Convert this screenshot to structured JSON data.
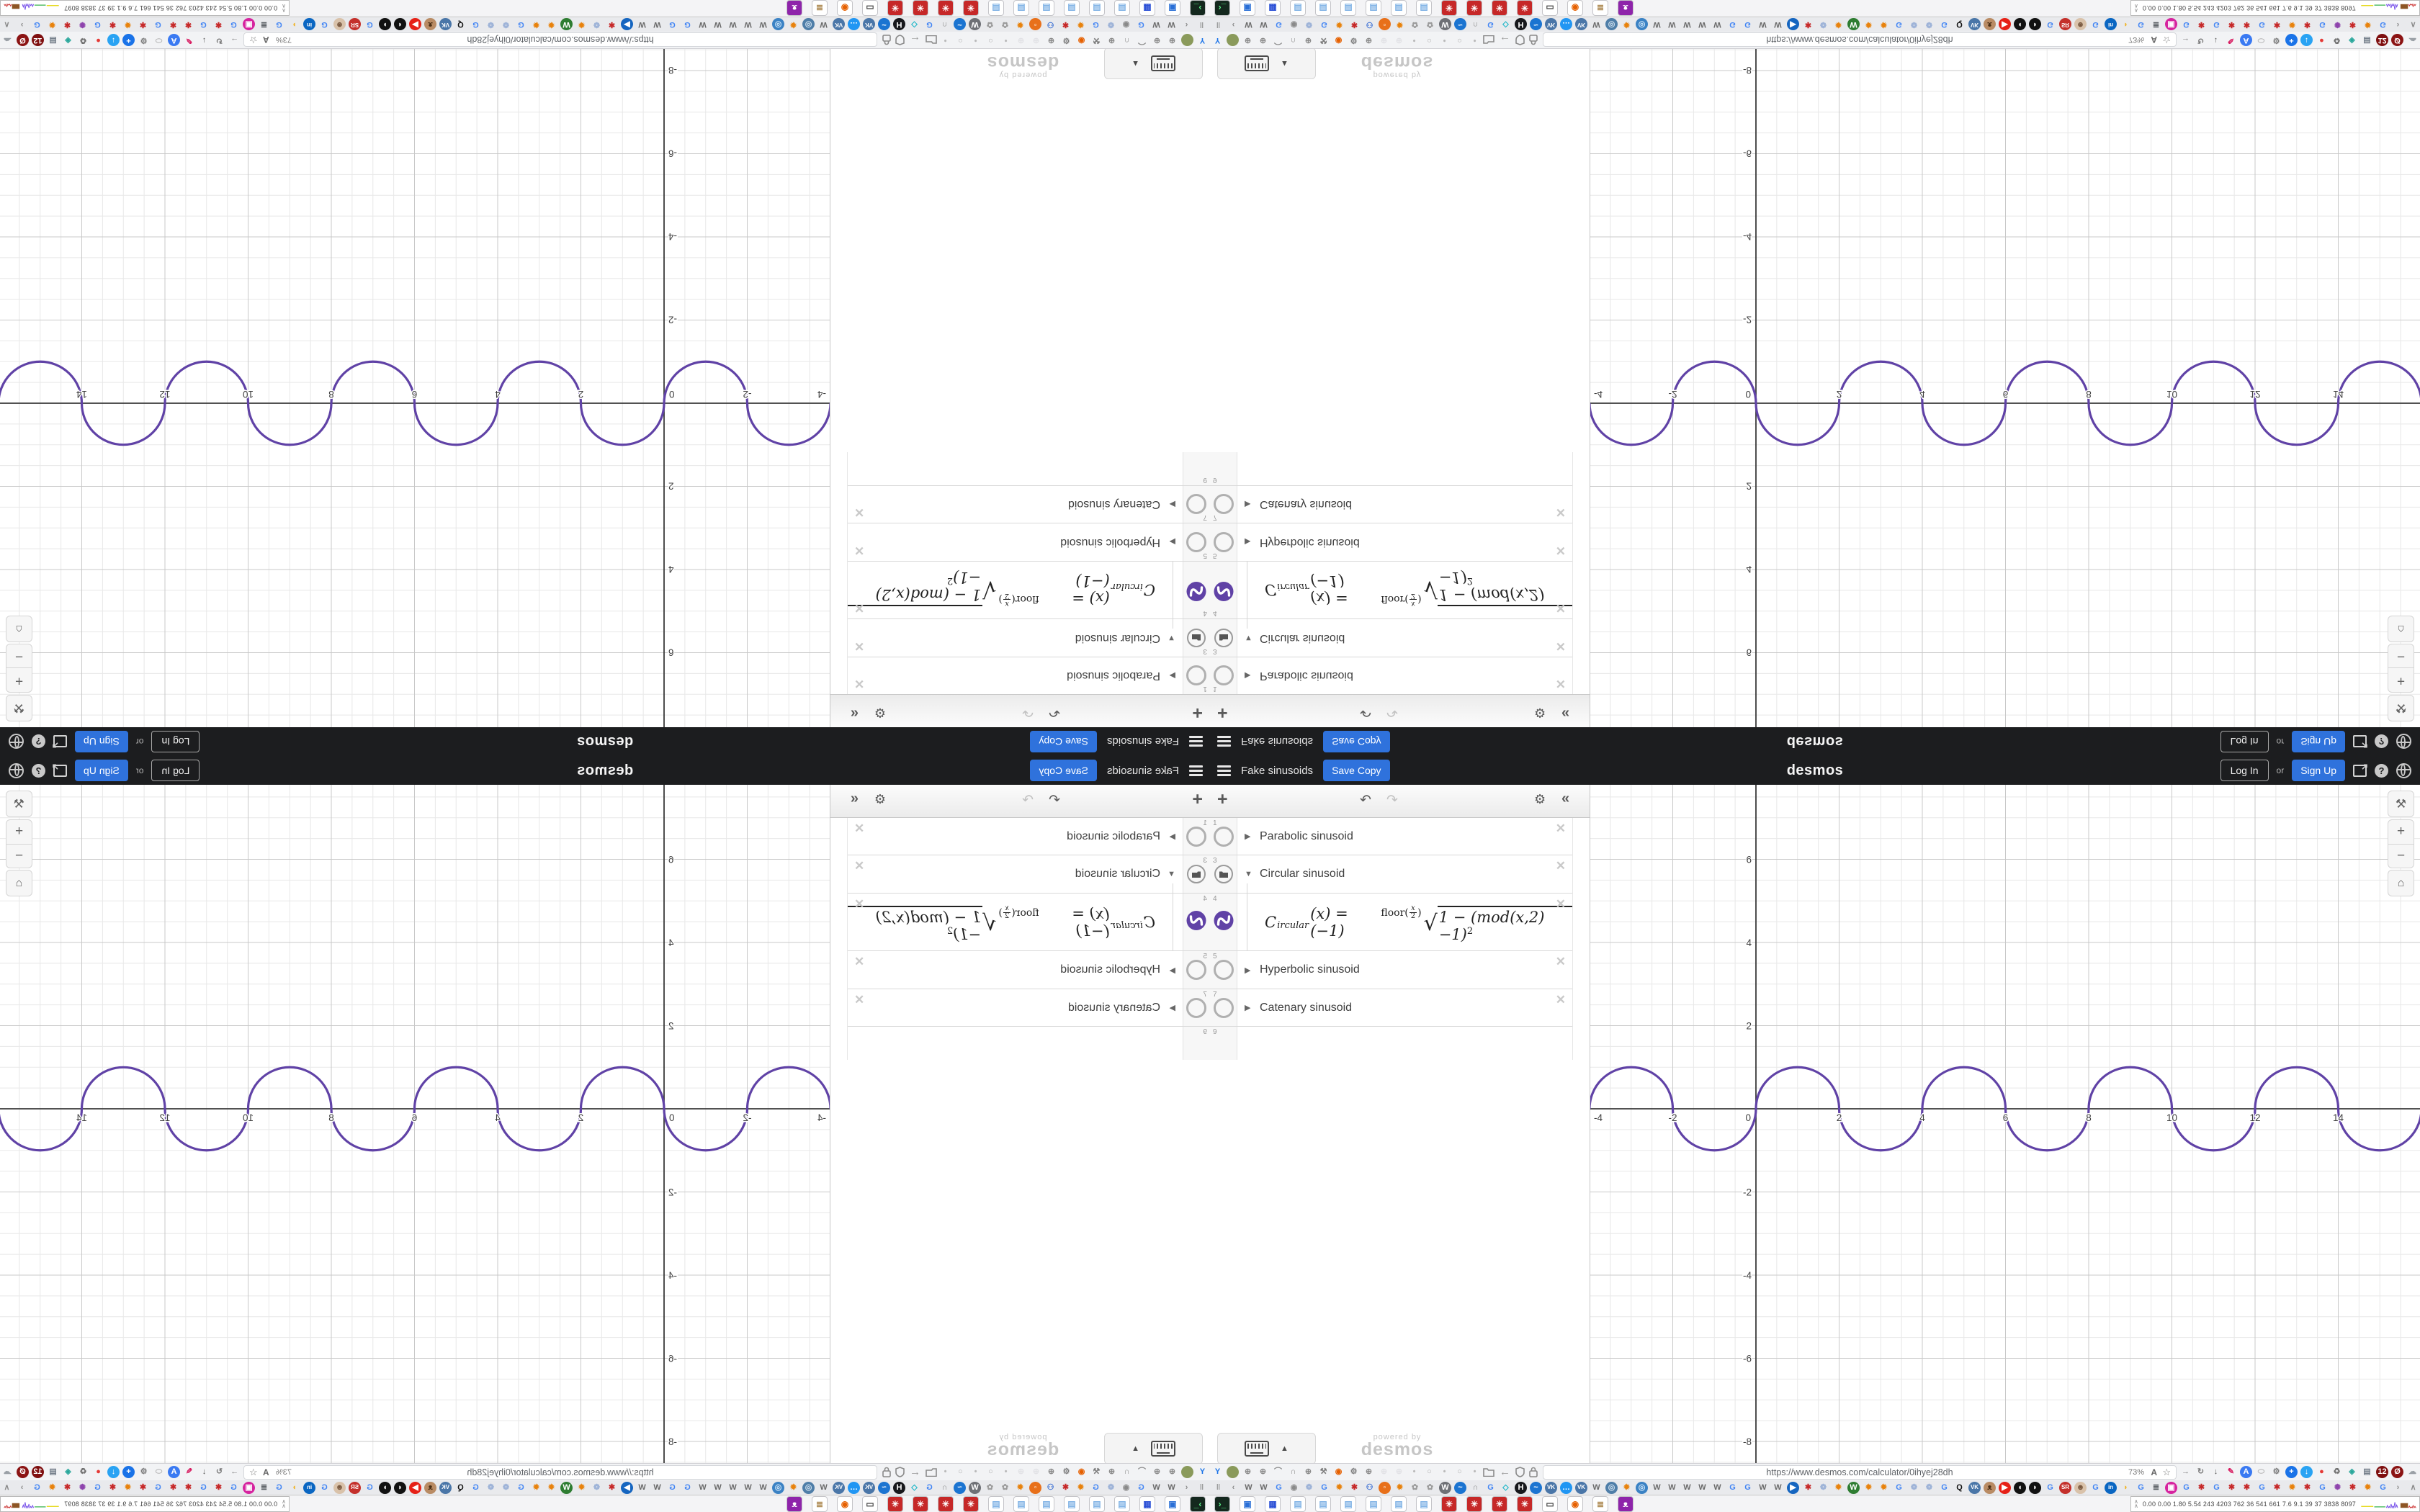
{
  "app": {
    "header": {
      "title": "Fake sinusoids",
      "save_copy": "Save Copy",
      "logo": "desmos",
      "log_in": "Log In",
      "or": "or",
      "sign_up": "Sign Up"
    },
    "glyphs": {
      "hamburger": "menu",
      "share_arrow": "➔",
      "help": "?",
      "add": "+",
      "undo": "↶",
      "redo": "↷",
      "settings": "⚙",
      "collapse": "«",
      "caret_right": "▶",
      "caret_down": "▼",
      "close": "✕",
      "keypad_arrow": "▲",
      "wrench": "⚒",
      "zoom_in": "+",
      "zoom_out": "−",
      "home": "⌂",
      "back": "←"
    },
    "expressions": [
      {
        "number": "1",
        "label": "Parabolic sinusoid",
        "state": "collapsed"
      },
      {
        "number": "3",
        "label": "Circular sinusoid",
        "state": "expanded"
      },
      {
        "number": "4",
        "state": "formula",
        "formula": {
          "lhs": "C",
          "sub": "ircular",
          "mid": "(x) = (−1)",
          "floor_fn": "floor",
          "num": "x",
          "den": "2",
          "body": "1 − (mod(x,2) −1)",
          "pow": "2"
        }
      },
      {
        "number": "5",
        "label": "Hyperbolic sinusoid",
        "state": "collapsed"
      },
      {
        "number": "7",
        "label": "Catenary sinusoid",
        "state": "collapsed"
      },
      {
        "number": "9",
        "label": "",
        "state": "empty"
      }
    ],
    "watermark": {
      "line1": "powered by",
      "line2": "desmos"
    }
  },
  "chart_data": {
    "type": "line",
    "title": "Circular sinusoid",
    "expression": "C_ircular(x) = (-1)^floor(x/2) * sqrt(1 - (mod(x,2)-1)^2)",
    "color": "#6042a6",
    "x_range": [
      -4,
      15.96
    ],
    "y_range": [
      -8.5,
      7.8
    ],
    "x_ticks": [
      -4,
      -2,
      2,
      4,
      6,
      8,
      10,
      12,
      14
    ],
    "y_ticks": [
      -8,
      -6,
      -4,
      -2,
      2,
      4,
      6
    ],
    "origin_label": "0",
    "minor_step": 0.5,
    "major_step": 2,
    "grid": true,
    "legend": "none",
    "bumps": {
      "start": -4,
      "end": 16,
      "half_period": 2,
      "amplitude": 1,
      "first": "up"
    }
  },
  "browser": {
    "url": "https://www.desmos.com/calculator/0ihyej28dh",
    "zoom_level": "73%",
    "reader_glyph": "A",
    "star_glyph": "☆",
    "address_left": [
      {
        "g": "Y",
        "fg": "#1a73e8",
        "n": "pin-extension-icon"
      },
      {
        "g": "",
        "bg": "#8a9a5b",
        "n": "profile-avatar"
      },
      {
        "g": "⊕",
        "fg": "#8b8b8b",
        "n": "globe-extension-icon"
      },
      {
        "g": "⊕",
        "fg": "#8b8b8b",
        "n": "globe-extension-icon"
      },
      {
        "g": "⌒",
        "fg": "#8b8b8b",
        "n": "gauge-extension-icon"
      },
      {
        "g": "∩",
        "fg": "#8b8b8b",
        "n": "magnet-extension-icon"
      },
      {
        "g": "⊕",
        "fg": "#8b8b8b",
        "n": "globe-extension-icon"
      },
      {
        "g": "⚒",
        "fg": "#7a7a7a",
        "n": "wrench-extension-icon"
      },
      {
        "g": "◉",
        "fg": "#e66000",
        "n": "firefox-icon"
      },
      {
        "g": "⚙",
        "fg": "#7a7a7a",
        "n": "gear-extension-icon"
      },
      {
        "g": "⊕",
        "fg": "#8b8b8b",
        "n": "globe-extension-icon"
      },
      {
        "g": "⊕",
        "fg": "#e2e2e6",
        "n": "ghost-extension-icon"
      },
      {
        "g": "⊕",
        "fg": "#e2e2e6",
        "n": "ghost-extension-icon"
      },
      {
        "g": "•",
        "fg": "#b9b9b9",
        "n": "tab-dot"
      },
      {
        "g": "○",
        "fg": "#b0b0b0",
        "n": "tab-dot"
      },
      {
        "g": "•",
        "fg": "#b9b9b9",
        "n": "tab-dot"
      },
      {
        "g": "○",
        "fg": "#b0b0b0",
        "n": "tab-dot"
      },
      {
        "g": "•",
        "fg": "#b9b9b9",
        "n": "tab-dot"
      }
    ],
    "address_right": [
      {
        "g": "→",
        "fg": "#7a7a7a",
        "n": "forward-icon"
      },
      {
        "g": "↻",
        "fg": "#7a7a7a",
        "n": "reload-icon"
      },
      {
        "g": "↓",
        "fg": "#555555",
        "n": "download-icon"
      },
      {
        "g": "✎",
        "fg": "#d81b60",
        "n": "pencil-extension-icon"
      },
      {
        "g": "A",
        "bg": "#3a7af2",
        "fg": "#ffffff",
        "n": "translate-extension-icon"
      },
      {
        "g": "⬭",
        "fg": "#b5b5b5",
        "n": "egg-extension-icon"
      },
      {
        "g": "⚙",
        "fg": "#777777",
        "n": "gear-extension-icon"
      },
      {
        "g": "+",
        "bg": "#1a73e8",
        "fg": "#ffffff",
        "n": "add-extension-icon"
      },
      {
        "g": "↓",
        "bg": "#29a3f3",
        "fg": "#ffffff",
        "n": "blue-download-extension-icon"
      },
      {
        "g": "●",
        "fg": "#e53935",
        "n": "recorder-extension-icon"
      },
      {
        "g": "♻",
        "fg": "#707070",
        "n": "trash-extension-icon"
      },
      {
        "g": "◈",
        "fg": "#26a69a",
        "n": "diamond-extension-icon"
      },
      {
        "g": "▤",
        "fg": "#76808c",
        "n": "archive-extension-icon"
      },
      {
        "g": "12",
        "bg": "#7f1010",
        "fg": "#ffffff",
        "n": "shield-badge-extension-icon"
      },
      {
        "g": "Ø",
        "bg": "#8b1414",
        "fg": "#ffffff",
        "n": "blocker-extension-icon"
      },
      {
        "g": "☁",
        "fg": "#9aa0a6",
        "n": "ghost-extension-icon"
      },
      {
        "g": "⊕",
        "fg": "#9aa0a6",
        "n": "globe-extension-icon"
      },
      {
        "g": "☝",
        "fg": "#6b7280",
        "n": "thumb-extension-icon"
      },
      {
        "g": "⚒",
        "fg": "#6b7280",
        "n": "wrench-extension-icon"
      },
      {
        "g": "⚙",
        "fg": "#6b7280",
        "n": "gear-extension-icon"
      },
      {
        "g": "≡",
        "fg": "#5f6368",
        "n": "browser-menu-icon"
      }
    ],
    "tabs": [
      {
        "g": "‖",
        "fg": "#9a9a9a",
        "n": "pinned-separator"
      },
      {
        "g": "‹",
        "fg": "#8a8a8a",
        "n": "tab-scroll-left-icon"
      },
      {
        "g": "W",
        "fg": "#6a6a6a"
      },
      {
        "g": "W",
        "fg": "#6a6a6a"
      },
      {
        "g": "G",
        "fg": "#4285F4"
      },
      {
        "g": "◉",
        "fg": "#8a8a8a"
      },
      {
        "g": "❁",
        "fg": "#9fb4d8"
      },
      {
        "g": "G",
        "fg": "#4285F4"
      },
      {
        "g": "✹",
        "fg": "#e8820c"
      },
      {
        "g": "✱",
        "fg": "#c62828"
      },
      {
        "g": "⚇",
        "fg": "#3b6fd4"
      },
      {
        "g": "◦",
        "bg": "#e8701a",
        "fg": "#ffffff"
      },
      {
        "g": "✹",
        "fg": "#e8820c"
      },
      {
        "g": "✿",
        "fg": "#9a9a9a"
      },
      {
        "g": "✿",
        "fg": "#9a9a9a"
      },
      {
        "g": "W",
        "bg": "#6e7075",
        "fg": "#ffffff"
      },
      {
        "g": "~",
        "bg": "#1b74d1",
        "fg": "#ffffff"
      },
      {
        "g": "∩",
        "fg": "#8a8a8a"
      },
      {
        "g": "G",
        "fg": "#4285F4"
      },
      {
        "g": "◇",
        "fg": "#14b4c6"
      },
      {
        "g": "H",
        "bg": "#17181c",
        "fg": "#ffffff"
      },
      {
        "g": "~",
        "bg": "#1b74d1",
        "fg": "#ffffff"
      },
      {
        "g": "VK",
        "bg": "#4a76a8",
        "fg": "#ffffff",
        "sm": true
      },
      {
        "g": "…",
        "bg": "#2196f3",
        "fg": "#ffffff"
      },
      {
        "g": "VK",
        "bg": "#4a76a8",
        "fg": "#ffffff",
        "sm": true
      },
      {
        "g": "W",
        "fg": "#6a6a6a"
      },
      {
        "g": "◎",
        "bg": "#4f7ea8",
        "fg": "#cfe0ee"
      },
      {
        "g": "✹",
        "fg": "#e8820c"
      },
      {
        "g": "◎",
        "bg": "#3b82c4",
        "fg": "#cfe6f8"
      },
      {
        "g": "W",
        "fg": "#6a6a6a"
      },
      {
        "g": "W",
        "fg": "#6a6a6a"
      },
      {
        "g": "W",
        "fg": "#6a6a6a"
      },
      {
        "g": "W",
        "fg": "#6a6a6a"
      },
      {
        "g": "W",
        "fg": "#6a6a6a"
      },
      {
        "g": "G",
        "fg": "#4285F4"
      },
      {
        "g": "G",
        "fg": "#4285F4"
      },
      {
        "g": "W",
        "fg": "#6a6a6a"
      },
      {
        "g": "W",
        "fg": "#6a6a6a"
      },
      {
        "g": "▶",
        "bg": "#1565c0",
        "fg": "#ffffff"
      },
      {
        "g": "✱",
        "fg": "#c62828"
      },
      {
        "g": "❁",
        "fg": "#9fb4d8"
      },
      {
        "g": "✹",
        "fg": "#e8820c"
      },
      {
        "g": "W",
        "bg": "#2e7d32",
        "fg": "#ffffff"
      },
      {
        "g": "✹",
        "fg": "#e8820c"
      },
      {
        "g": "✹",
        "fg": "#e8820c"
      },
      {
        "g": "G",
        "fg": "#4285F4"
      },
      {
        "g": "❁",
        "fg": "#9fb4d8"
      },
      {
        "g": "❁",
        "fg": "#9fb4d8"
      },
      {
        "g": "G",
        "fg": "#4285F4"
      },
      {
        "g": "Q",
        "fg": "#111111"
      },
      {
        "g": "VK",
        "bg": "#4a76a8",
        "fg": "#ffffff",
        "sm": true
      },
      {
        "g": "ᴥ",
        "bg": "#b98b64",
        "fg": "#4a2e14"
      },
      {
        "g": "▶",
        "bg": "#e62117",
        "fg": "#ffffff",
        "n": "youtube-tab-icon"
      },
      {
        "g": "◖",
        "bg": "#111111",
        "fg": "#ffffff"
      },
      {
        "g": "◗",
        "bg": "#111111",
        "fg": "#ffffff"
      },
      {
        "g": "G",
        "fg": "#4285F4"
      },
      {
        "g": "SR",
        "bg": "#c4302b",
        "fg": "#ffffff",
        "sm": true
      },
      {
        "g": "☻",
        "bg": "#d9c2aa",
        "fg": "#77573e"
      },
      {
        "g": "G",
        "fg": "#4285F4"
      },
      {
        "g": "in",
        "bg": "#0a66c2",
        "fg": "#ffffff",
        "sm": true,
        "n": "linkedin-tab-icon"
      },
      {
        "g": "◗",
        "fg": "#f0b429"
      },
      {
        "g": "G",
        "fg": "#4285F4"
      },
      {
        "g": "≣",
        "fg": "#5f6368"
      },
      {
        "g": "▣",
        "bg": "#d6249f",
        "fg": "#ffffff",
        "n": "instagram-tab-icon"
      },
      {
        "g": "G",
        "fg": "#4285F4"
      },
      {
        "g": "✱",
        "fg": "#c62828"
      },
      {
        "g": "G",
        "fg": "#4285F4"
      },
      {
        "g": "✱",
        "fg": "#c62828"
      },
      {
        "g": "✱",
        "fg": "#c62828"
      },
      {
        "g": "G",
        "fg": "#4285F4"
      },
      {
        "g": "✱",
        "fg": "#c62828"
      },
      {
        "g": "✹",
        "fg": "#e8820c"
      },
      {
        "g": "✱",
        "fg": "#c62828"
      },
      {
        "g": "G",
        "fg": "#4285F4"
      },
      {
        "g": "✺",
        "fg": "#8e44ad"
      },
      {
        "g": "✱",
        "fg": "#c62828"
      },
      {
        "g": "✹",
        "fg": "#e8820c"
      },
      {
        "g": "G",
        "fg": "#4285F4"
      },
      {
        "g": "›",
        "fg": "#8a8a8a",
        "n": "tab-scroll-right-icon"
      },
      {
        "g": "∧",
        "fg": "#8a8a8a",
        "n": "list-all-tabs-icon"
      }
    ],
    "taskbar": [
      {
        "g": "›_",
        "bg": "#14281e",
        "fg": "#5df28a",
        "tile": true,
        "n": "terminal-app-icon"
      },
      {
        "g": "▣",
        "bg": "#ffffff",
        "fg": "#2a6fd6",
        "tile": true,
        "n": "display-app-icon"
      },
      {
        "g": "▦",
        "bg": "#ffffff",
        "fg": "#2a4fd6",
        "tile": true,
        "n": "save-app-icon"
      },
      {
        "g": "▤",
        "bg": "#ffffff",
        "fg": "#7fb2e5",
        "tile": true,
        "n": "notepad-app-icon"
      },
      {
        "g": "▤",
        "bg": "#ffffff",
        "fg": "#7fb2e5",
        "tile": true,
        "n": "notepad-app-icon"
      },
      {
        "g": "▤",
        "bg": "#ffffff",
        "fg": "#7fb2e5",
        "tile": true,
        "n": "notepad-app-icon"
      },
      {
        "g": "▤",
        "bg": "#ffffff",
        "fg": "#7fb2e5",
        "tile": true,
        "n": "notepad-app-icon"
      },
      {
        "g": "▤",
        "bg": "#ffffff",
        "fg": "#7fb2e5",
        "tile": true,
        "n": "notepad-app-icon"
      },
      {
        "g": "▤",
        "bg": "#ffffff",
        "fg": "#7fb2e5",
        "tile": true,
        "n": "notepad-app-icon"
      },
      {
        "g": "✳",
        "bg": "#c62828",
        "fg": "#ffffff",
        "tile": true,
        "n": "red-gear-app-icon"
      },
      {
        "g": "✳",
        "bg": "#c62828",
        "fg": "#ffffff",
        "tile": true,
        "n": "red-gear-app-icon"
      },
      {
        "g": "✳",
        "bg": "#c62828",
        "fg": "#ffffff",
        "tile": true,
        "n": "red-gear-app-icon"
      },
      {
        "g": "✳",
        "bg": "#c62828",
        "fg": "#ffffff",
        "tile": true,
        "n": "red-gear-app-icon"
      },
      {
        "g": "▭",
        "bg": "#ffffff",
        "fg": "#444444",
        "tile": true,
        "n": "screenshare-app-icon"
      },
      {
        "g": "◉",
        "bg": "#ffffff",
        "fg": "#e66000",
        "tile": true,
        "n": "firefox-app-icon"
      },
      {
        "g": "≣",
        "bg": "#ffffff",
        "fg": "#b08d57",
        "tile": true,
        "n": "script-app-icon"
      },
      {
        "g": "ᴥ",
        "bg": "#8e24aa",
        "fg": "#ffffff",
        "tile": true,
        "n": "purple-cat-app-icon"
      }
    ],
    "stats": {
      "expand": "∧",
      "values": "0.00 0.00 1.80 5.54 243 4203 762 36 541 661 7.6 9.1 39 37 3838 8097"
    }
  }
}
